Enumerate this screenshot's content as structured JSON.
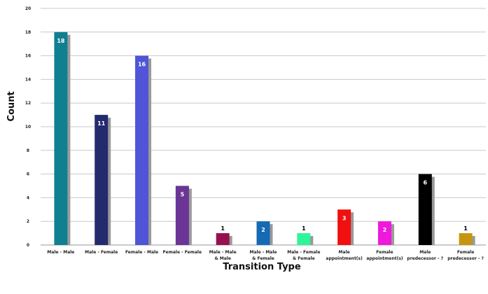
{
  "chart_data": {
    "type": "bar",
    "xlabel": "Transition Type",
    "ylabel": "Count",
    "ylim": [
      0,
      20
    ],
    "yticks": [
      0,
      2,
      4,
      6,
      8,
      10,
      12,
      14,
      16,
      18,
      20
    ],
    "grid": true,
    "legend": "none",
    "categories": [
      [
        "Male - Male"
      ],
      [
        "Male - Female"
      ],
      [
        "Female - Male"
      ],
      [
        "Female - Female"
      ],
      [
        "Male - Male",
        "& Male"
      ],
      [
        "Male - Male",
        "& Female"
      ],
      [
        "Male - Female",
        "& Female"
      ],
      [
        "Male",
        "appointment(s)"
      ],
      [
        "Female",
        "appointment(s)"
      ],
      [
        "Male",
        "predecessor - ?"
      ],
      [
        "Female",
        "predecessor - ?"
      ]
    ],
    "values": [
      18,
      11,
      16,
      5,
      1,
      2,
      1,
      3,
      2,
      6,
      1
    ],
    "colors": [
      "#0f8090",
      "#232a6e",
      "#4f55d6",
      "#6a3596",
      "#96104f",
      "#1669b4",
      "#2ef59a",
      "#f01010",
      "#f018dc",
      "#000000",
      "#c5960f"
    ],
    "label_colors": [
      "#ffffff",
      "#ffffff",
      "#ffffff",
      "#ffffff",
      "#000000",
      "#ffffff",
      "#000000",
      "#ffffff",
      "#ffffff",
      "#ffffff",
      "#000000"
    ],
    "label_inside": [
      true,
      true,
      true,
      true,
      false,
      true,
      false,
      true,
      true,
      true,
      false
    ]
  }
}
